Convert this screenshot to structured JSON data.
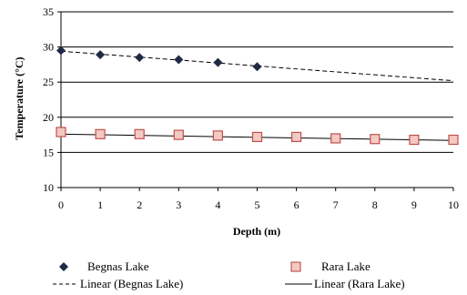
{
  "chart_data": {
    "type": "scatter",
    "xlabel": "Depth  (m)",
    "ylabel": "Temperature  (°C)",
    "xlim": [
      0,
      10
    ],
    "ylim": [
      10,
      35
    ],
    "x_ticks": [
      "0",
      "1",
      "2",
      "3",
      "4",
      "5",
      "6",
      "7",
      "8",
      "9",
      "10"
    ],
    "y_ticks": [
      "10",
      "15",
      "20",
      "25",
      "30",
      "35"
    ],
    "grid": "horizontal",
    "legend_position": "bottom",
    "series": [
      {
        "name": "Begnas Lake",
        "marker": "diamond",
        "color": "#1f2a44",
        "points": [
          [
            0,
            29.5
          ],
          [
            1,
            28.9
          ],
          [
            2,
            28.5
          ],
          [
            3,
            28.2
          ],
          [
            4,
            27.8
          ],
          [
            5,
            27.2
          ]
        ]
      },
      {
        "name": "Rara Lake",
        "marker": "square",
        "color": "#c0504d",
        "points": [
          [
            0,
            17.9
          ],
          [
            1,
            17.6
          ],
          [
            2,
            17.6
          ],
          [
            3,
            17.5
          ],
          [
            4,
            17.4
          ],
          [
            5,
            17.2
          ],
          [
            6,
            17.2
          ],
          [
            7,
            17.0
          ],
          [
            8,
            16.9
          ],
          [
            9,
            16.8
          ],
          [
            10,
            16.8
          ]
        ]
      }
    ],
    "trendlines": [
      {
        "name": "Linear (Begnas Lake)",
        "style": "dashed",
        "from": [
          0,
          29.4
        ],
        "to": [
          10,
          25.2
        ]
      },
      {
        "name": "Linear (Rara Lake)",
        "style": "solid",
        "from": [
          0,
          17.6
        ],
        "to": [
          10,
          16.7
        ]
      }
    ]
  }
}
